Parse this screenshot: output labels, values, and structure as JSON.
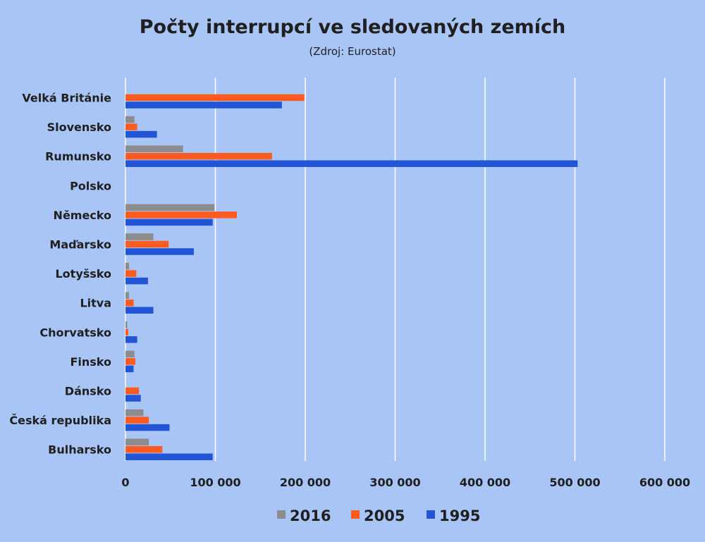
{
  "chart_data": {
    "type": "bar",
    "orientation": "horizontal",
    "title": "Počty interrupcí ve sledovaných zemích",
    "subtitle": "(Zdroj: Eurostat)",
    "xlabel": "",
    "ylabel": "",
    "xlim": [
      0,
      600000
    ],
    "x_ticks": [
      0,
      100000,
      200000,
      300000,
      400000,
      500000,
      600000
    ],
    "x_tick_labels": [
      "0",
      "100 000",
      "200 000",
      "300 000",
      "400 000",
      "500 000",
      "600 000"
    ],
    "grid": true,
    "legend_position": "bottom",
    "categories": [
      "Velká Británie",
      "Slovensko",
      "Rumunsko",
      "Polsko",
      "Německo",
      "Maďarsko",
      "Lotyšsko",
      "Litva",
      "Chorvatsko",
      "Finsko",
      "Dánsko",
      "Česká republika",
      "Bulharsko"
    ],
    "series": [
      {
        "name": "2016",
        "color": "#8c8c8c",
        "values": [
          0,
          10000,
          64000,
          0,
          99000,
          31000,
          4000,
          4000,
          2000,
          10000,
          0,
          20000,
          26000
        ]
      },
      {
        "name": "2005",
        "color": "#ff5a1f",
        "values": [
          199000,
          13000,
          163000,
          0,
          124000,
          48000,
          12000,
          9000,
          3000,
          11000,
          15000,
          26000,
          41000
        ]
      },
      {
        "name": "1995",
        "color": "#2254d6",
        "values": [
          174000,
          35000,
          503000,
          0,
          97000,
          76000,
          25000,
          31000,
          13000,
          9000,
          17000,
          49000,
          97000
        ]
      }
    ]
  }
}
